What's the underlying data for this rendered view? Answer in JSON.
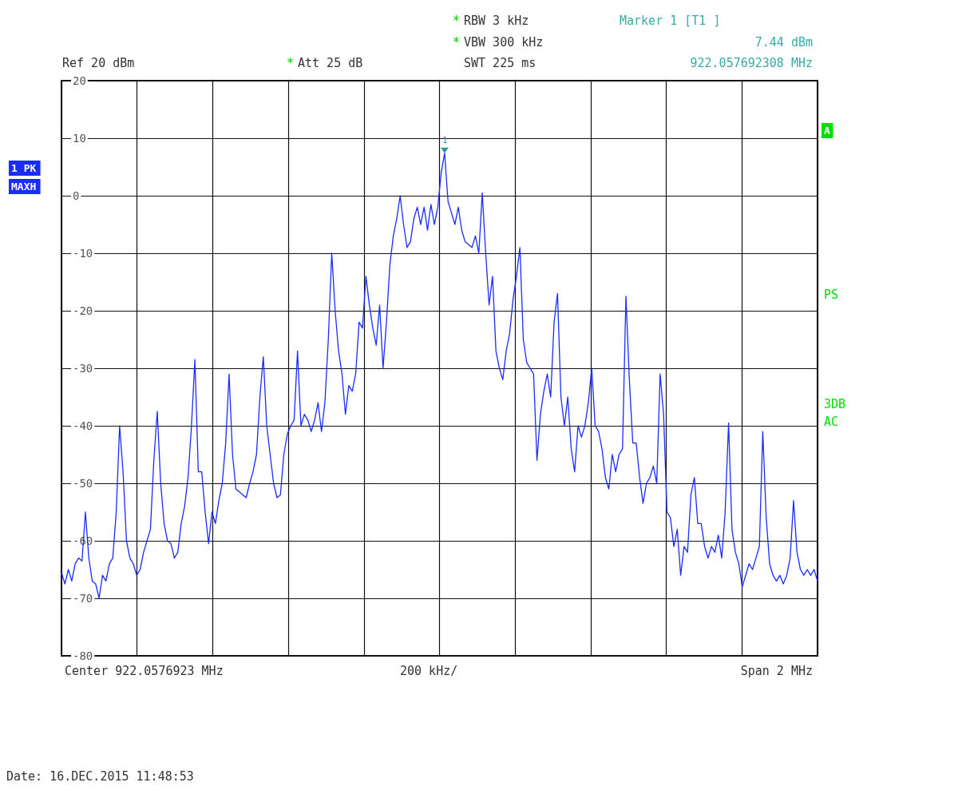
{
  "chart_data": {
    "type": "line",
    "categories": [
      null,
      null,
      null,
      null,
      null,
      null,
      null,
      null,
      null,
      null,
      null,
      null,
      null,
      null,
      null,
      null,
      null,
      null,
      null,
      null,
      null,
      null,
      null,
      null,
      null,
      null,
      null,
      null,
      null,
      null,
      null,
      null,
      null,
      null,
      null,
      null,
      null,
      null,
      null,
      null,
      null,
      null,
      null,
      null,
      null,
      null,
      null,
      null,
      null,
      null,
      null,
      null,
      null,
      null,
      null,
      null,
      null,
      null,
      null,
      null,
      null,
      null,
      null,
      null,
      null,
      null,
      null,
      null,
      null,
      null,
      null,
      null,
      null,
      null,
      null,
      null,
      null,
      null,
      null,
      null,
      null,
      null,
      null,
      null,
      null,
      null,
      null,
      null,
      null,
      null,
      null,
      null,
      null,
      null,
      null,
      null,
      null,
      null,
      null,
      null,
      null,
      null,
      null,
      null,
      null,
      null,
      null,
      null,
      null,
      null,
      null,
      null,
      null,
      null,
      null,
      null,
      null,
      null,
      null,
      null,
      null,
      null,
      null,
      null,
      null,
      null,
      null,
      null,
      null,
      null,
      null,
      null,
      null,
      null,
      null,
      null,
      null,
      null,
      null,
      null,
      null,
      null,
      null,
      null,
      null,
      null,
      null,
      null,
      null,
      null,
      null,
      null,
      null,
      null,
      null,
      null,
      null,
      null,
      null,
      null,
      null,
      null,
      null,
      null,
      null,
      null,
      null,
      null,
      null,
      null,
      null,
      null,
      null,
      null,
      null,
      null,
      null,
      null,
      null,
      null,
      null,
      null,
      null,
      null,
      null,
      null,
      null,
      null,
      null,
      null,
      null,
      null,
      null,
      null,
      null,
      null,
      null,
      null,
      null,
      null,
      null,
      null,
      null,
      null,
      null,
      null,
      null,
      null,
      null,
      null,
      null,
      null,
      null,
      null,
      null,
      null,
      null,
      null,
      null,
      null,
      null,
      null
    ],
    "series": [
      {
        "color": "#1a2cff",
        "values": [
          -65.5,
          -67.5,
          -65,
          -67,
          -64,
          -63,
          -63.5,
          -55,
          -63,
          -67,
          -67.5,
          -70,
          -66,
          -67,
          -64,
          -63,
          -55,
          -40,
          -48,
          -60,
          -63,
          -64,
          -66,
          -65,
          -62,
          -60,
          -58,
          -46,
          -37.5,
          -50,
          -57,
          -60,
          -60.5,
          -63,
          -62,
          -57,
          -54,
          -49,
          -40,
          -28.5,
          -48,
          -48,
          -55,
          -60.5,
          -55,
          -57,
          -53,
          -50,
          -43,
          -31,
          -45,
          -51,
          -51.5,
          -52,
          -52.5,
          -50,
          -48,
          -45,
          -35,
          -28,
          -40,
          -45,
          -50,
          -52.5,
          -52,
          -45,
          -41.5,
          -40,
          -39,
          -27,
          -40,
          -38,
          -39,
          -41,
          -39,
          -36,
          -41,
          -36,
          -25,
          -10,
          -20,
          -27,
          -31,
          -38,
          -33,
          -34,
          -31,
          -22,
          -23,
          -14,
          -19,
          -23,
          -26,
          -19,
          -30,
          -22,
          -12,
          -7,
          -4,
          0,
          -5,
          -9,
          -8,
          -4,
          -2,
          -5,
          -2,
          -6,
          -1.5,
          -5,
          -2,
          4,
          7.4,
          -1,
          -3,
          -5,
          -2,
          -6,
          -8,
          -8.5,
          -9,
          -7,
          -10,
          0.5,
          -10,
          -19,
          -14,
          -27,
          -30,
          -32,
          -27,
          -24,
          -18,
          -14,
          -9,
          -25,
          -29,
          -30,
          -31,
          -46,
          -38,
          -34,
          -31,
          -35,
          -22,
          -17,
          -35,
          -40,
          -35,
          -44,
          -48,
          -40,
          -42,
          -40,
          -36,
          -30,
          -40,
          -41,
          -44,
          -49,
          -51,
          -45,
          -48,
          -45,
          -44,
          -17.5,
          -32,
          -43,
          -43,
          -49,
          -53.5,
          -50,
          -49,
          -47,
          -50,
          -31,
          -38,
          -55,
          -56,
          -61,
          -58,
          -66,
          -61,
          -62,
          -52,
          -49,
          -57,
          -57,
          -61,
          -63,
          -61,
          -62,
          -59,
          -63,
          -55,
          -39.5,
          -58,
          -62,
          -64,
          -68,
          -66,
          -64,
          -65,
          -63,
          -61,
          -41,
          -56,
          -64,
          -66,
          -67,
          -66,
          -67.5,
          -66,
          -63,
          -53,
          -62,
          -65,
          -66,
          -65,
          -66,
          -65,
          -67
        ]
      }
    ],
    "ylim": [
      -80,
      20
    ],
    "yticks": [
      -80,
      -70,
      -60,
      -50,
      -40,
      -30,
      -20,
      -10,
      0,
      10,
      20
    ],
    "grid": true,
    "marker": "none",
    "line_style": "solid",
    "annotations": [
      "RBW 3 kHz",
      "VBW 300 kHz",
      "Ref 20 dBm",
      "Att 25 dB",
      "SWT 225 ms",
      "Marker 1 [T1 ]",
      "7.44 dBm",
      "922.057692308 MHz",
      "Center 922.0576923 MHz",
      "200 kHz/",
      "Span 2 MHz",
      "Date: 16.DEC.2015 11:48:53",
      "1 PK",
      "MAXH",
      "A",
      "PS",
      "3DB",
      "AC",
      "1",
      "*",
      "*",
      "*"
    ]
  }
}
